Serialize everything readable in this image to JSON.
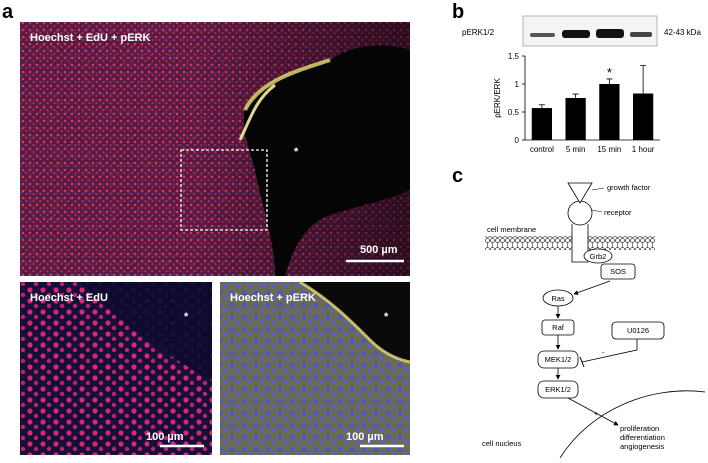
{
  "panels": {
    "a": "a",
    "b": "b",
    "c": "c"
  },
  "images": {
    "main": {
      "label": "Hoechst + EdU + pERK",
      "asterisk": "*",
      "scale": "500 µm"
    },
    "edu": {
      "label": "Hoechst + EdU",
      "asterisk": "*",
      "scale": "100 µm"
    },
    "perk": {
      "label": "Hoechst + pERK",
      "asterisk": "*",
      "scale": "100 µm"
    }
  },
  "blot": {
    "label": "pERK1/2",
    "size": "42-43 kDa"
  },
  "chart_data": {
    "type": "bar",
    "ylabel": "pERK/ERK",
    "categories": [
      "control",
      "5 min",
      "15 min",
      "1 hour"
    ],
    "values": [
      0.57,
      0.75,
      1.0,
      0.83
    ],
    "errors": [
      0.06,
      0.07,
      0.09,
      0.5
    ],
    "color": "#000000",
    "ylim": [
      0,
      1.5
    ],
    "yticks": [
      0,
      0.5,
      1,
      1.5
    ],
    "annotations": [
      {
        "category": "15 min",
        "text": "*"
      }
    ]
  },
  "diagram": {
    "growth_factor": "growth factor",
    "receptor": "receptor",
    "membrane": "cell membrane",
    "grb2": "Grb2",
    "sos": "SOS",
    "ras": "Ras",
    "raf": "Raf",
    "mek": "MEK1/2",
    "inhibitor": "U0126",
    "inhibit_sign": "-",
    "erk": "ERK1/2",
    "plus": "+",
    "nucleus": "cell nucleus",
    "outcomes": [
      "proliferation",
      "differentiation",
      "angiogenesis"
    ]
  }
}
